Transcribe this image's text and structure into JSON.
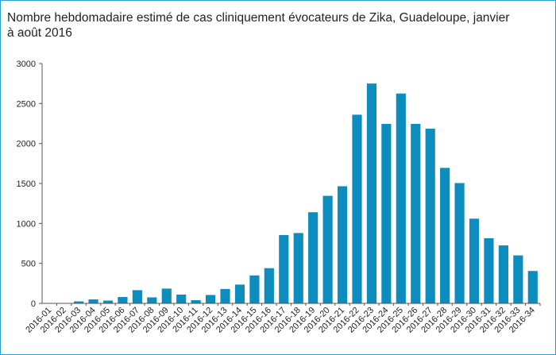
{
  "chart_data": {
    "type": "bar",
    "title": "Nombre hebdomadaire estimé de cas cliniquement évocateurs de Zika, Guadeloupe, janvier à août 2016",
    "xlabel": "",
    "ylabel": "",
    "ylim": [
      0,
      3000
    ],
    "yticks": [
      0,
      500,
      1000,
      1500,
      2000,
      2500,
      3000
    ],
    "grid": false,
    "bar_color": "#0c8dbd",
    "categories": [
      "2016-01",
      "2016-02",
      "2016-03",
      "2016-04",
      "2016-05",
      "2016-06",
      "2016-07",
      "2016-08",
      "2016-09",
      "2016-10",
      "2016-11",
      "2016-12",
      "2016-13",
      "2016-14",
      "2016-15",
      "2016-16",
      "2016-17",
      "2016-18",
      "2016-19",
      "2016-20",
      "2016-21",
      "2016-22",
      "2016-23",
      "2016-24",
      "2016-25",
      "2016-26",
      "2016-27",
      "2016-28",
      "2016-29",
      "2016-30",
      "2016-31",
      "2016-32",
      "2016-33",
      "2016-34"
    ],
    "values": [
      0,
      0,
      25,
      50,
      35,
      80,
      165,
      75,
      185,
      110,
      40,
      105,
      180,
      235,
      350,
      440,
      855,
      880,
      1140,
      1345,
      1465,
      2360,
      2750,
      2245,
      2625,
      2245,
      2185,
      1695,
      1505,
      1060,
      815,
      725,
      600,
      405
    ]
  }
}
